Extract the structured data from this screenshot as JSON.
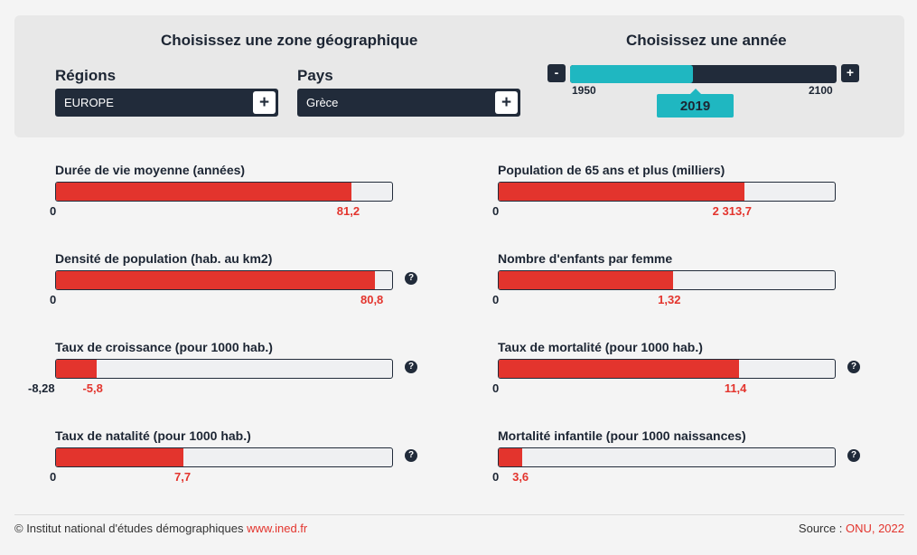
{
  "zone": {
    "title": "Choisissez une zone géographique",
    "regions_label": "Régions",
    "region_value": "EUROPE",
    "country_label": "Pays",
    "country_value": "Grèce",
    "add_symbol": "+"
  },
  "year": {
    "title": "Choisissez une année",
    "minus": "-",
    "plus": "+",
    "min": "1950",
    "max": "2100",
    "current": "2019",
    "min_num": 1950,
    "max_num": 2100,
    "current_num": 2019
  },
  "indicators": [
    {
      "title": "Durée de vie moyenne (années)",
      "min": "0",
      "value": "81,2",
      "fill": 0.88,
      "help": false
    },
    {
      "title": "Population de 65 ans et plus (milliers)",
      "min": "0",
      "value": "2 313,7",
      "fill": 0.73,
      "help": false
    },
    {
      "title": "Densité de population (hab. au km2)",
      "min": "0",
      "value": "80,8",
      "fill": 0.95,
      "help": true
    },
    {
      "title": "Nombre d'enfants par femme",
      "min": "0",
      "value": "1,32",
      "fill": 0.52,
      "help": false
    },
    {
      "title": "Taux de croissance (pour 1000 hab.)",
      "min": "-8,28",
      "value": "-5,8",
      "fill": 0.12,
      "help": true
    },
    {
      "title": "Taux de mortalité (pour 1000 hab.)",
      "min": "0",
      "value": "11,4",
      "fill": 0.715,
      "help": true
    },
    {
      "title": "Taux de natalité (pour 1000 hab.)",
      "min": "0",
      "value": "7,7",
      "fill": 0.38,
      "help": true
    },
    {
      "title": "Mortalité infantile (pour 1000 naissances)",
      "min": "0",
      "value": "3,6",
      "fill": 0.07,
      "help": true
    }
  ],
  "help_symbol": "?",
  "footer": {
    "copyright": "© Institut national d'études démographiques ",
    "link": "www.ined.fr",
    "source_label": "Source : ",
    "source_value": "ONU, 2022"
  },
  "colors": {
    "accent": "#e3342d",
    "slider": "#1fb7c1",
    "dark": "#212b3a"
  }
}
